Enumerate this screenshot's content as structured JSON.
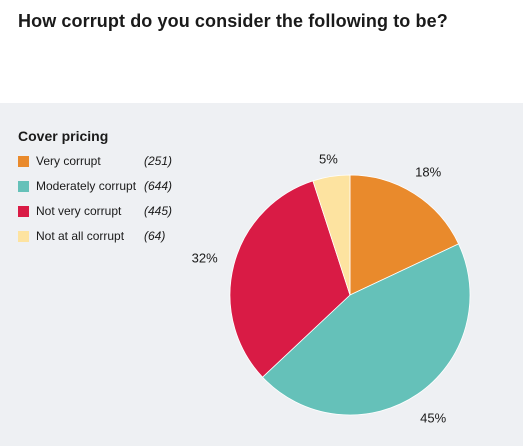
{
  "question": "How corrupt do you consider the following to be?",
  "chart_data": {
    "type": "pie",
    "title": "Cover pricing",
    "series": [
      {
        "name": "Very corrupt",
        "count": "(251)",
        "value": 18,
        "label": "18%",
        "color": "#e98a2c"
      },
      {
        "name": "Moderately corrupt",
        "count": "(644)",
        "value": 45,
        "label": "45%",
        "color": "#65c1b9"
      },
      {
        "name": "Not very corrupt",
        "count": "(445)",
        "value": 32,
        "label": "32%",
        "color": "#d91b45"
      },
      {
        "name": "Not at all corrupt",
        "count": "(64)",
        "value": 5,
        "label": "5%",
        "color": "#fde3a0"
      }
    ]
  }
}
